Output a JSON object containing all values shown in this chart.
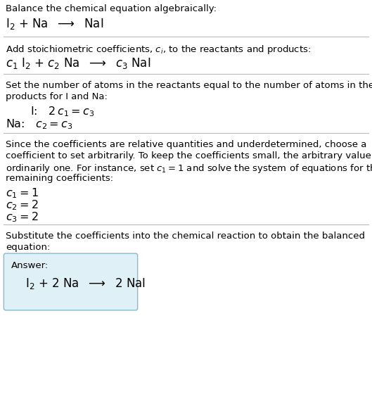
{
  "title_text": "Balance the chemical equation algebraically:",
  "section1_eq": "I$_2$ + Na  $\\longrightarrow$  NaI",
  "section2_header": "Add stoichiometric coefficients, $c_i$, to the reactants and products:",
  "section2_eq": "$c_1$ I$_2$ + $c_2$ Na  $\\longrightarrow$  $c_3$ NaI",
  "section3_header_line1": "Set the number of atoms in the reactants equal to the number of atoms in the",
  "section3_header_line2": "products for I and Na:",
  "section3_I": "   I:   $2\\,c_1 = c_3$",
  "section3_Na": "Na:   $c_2 = c_3$",
  "section4_header_line1": "Since the coefficients are relative quantities and underdetermined, choose a",
  "section4_header_line2": "coefficient to set arbitrarily. To keep the coefficients small, the arbitrary value is",
  "section4_header_line3": "ordinarily one. For instance, set $c_1 = 1$ and solve the system of equations for the",
  "section4_header_line4": "remaining coefficients:",
  "section4_c1": "$c_1 = 1$",
  "section4_c2": "$c_2 = 2$",
  "section4_c3": "$c_3 = 2$",
  "section5_header_line1": "Substitute the coefficients into the chemical reaction to obtain the balanced",
  "section5_header_line2": "equation:",
  "answer_label": "Answer:",
  "answer_equation": "I$_2$ + 2 Na  $\\longrightarrow$  2 NaI",
  "bg_color": "#ffffff",
  "text_color": "#000000",
  "line_color": "#bbbbbb",
  "box_color": "#dff0f7",
  "box_border_color": "#88bbcc",
  "body_fs": 9.5,
  "eq_fs": 12.0,
  "coeff_fs": 11.5
}
